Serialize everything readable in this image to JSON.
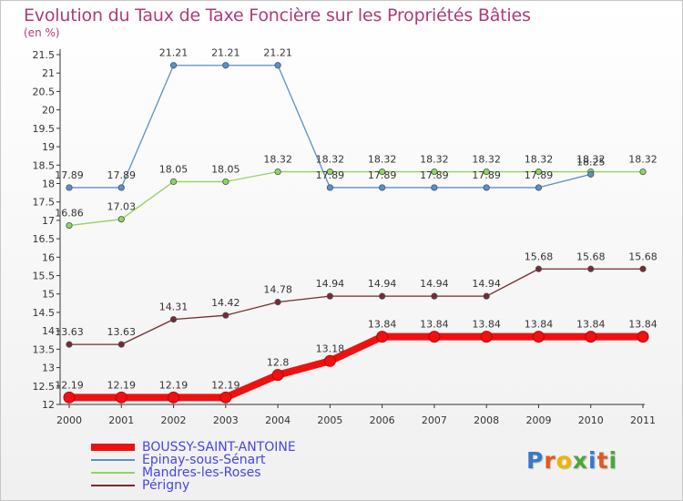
{
  "header": {
    "title": "Evolution du Taux de Taxe Foncière sur les Propriétés Bâties",
    "subtitle": "(en %)"
  },
  "chart_data": {
    "type": "line",
    "title": "Evolution du Taux de Taxe Foncière sur les Propriétés Bâties",
    "subtitle": "(en %)",
    "x": [
      "2000",
      "2001",
      "2002",
      "2003",
      "2004",
      "2005",
      "2006",
      "2007",
      "2008",
      "2009",
      "2010",
      "2011"
    ],
    "ylim": [
      12,
      21.5
    ],
    "yticks": [
      "12",
      "12.5",
      "13",
      "13.5",
      "14",
      "14.5",
      "15",
      "15.5",
      "16",
      "16.5",
      "17",
      "17.5",
      "18",
      "18.5",
      "19",
      "19.5",
      "20",
      "20.5",
      "21",
      "21.5"
    ],
    "grid": false,
    "legend_position": "bottom-left",
    "series": [
      {
        "name": "BOUSSY-SAINT-ANTOINE",
        "color": "#ee1111",
        "values": [
          12.19,
          12.19,
          12.19,
          12.19,
          12.8,
          13.18,
          13.84,
          13.84,
          13.84,
          13.84,
          13.84,
          13.84
        ],
        "labels": [
          "12.19",
          "12.19",
          "12.19",
          "12.19",
          "12.8",
          "13.18",
          "13.84",
          "13.84",
          "13.84",
          "13.84",
          "13.84",
          "13.84"
        ]
      },
      {
        "name": "Epinay-sous-Sénart",
        "color": "#5b8fc7",
        "values": [
          17.89,
          17.89,
          21.21,
          21.21,
          21.21,
          17.89,
          17.89,
          17.89,
          17.89,
          17.89,
          18.25,
          null
        ],
        "labels": [
          "17.89",
          "17.89",
          "21.21",
          "21.21",
          "21.21",
          "17.89",
          "17.89",
          "17.89",
          "17.89",
          "17.89",
          "18.25",
          null
        ]
      },
      {
        "name": "Mandres-les-Roses",
        "color": "#8fd65a",
        "values": [
          16.86,
          17.03,
          18.05,
          18.05,
          18.32,
          18.32,
          18.32,
          18.32,
          18.32,
          18.32,
          18.32,
          18.32
        ],
        "labels": [
          "16.86",
          "17.03",
          "18.05",
          "18.05",
          "18.32",
          "18.32",
          "18.32",
          "18.32",
          "18.32",
          "18.32",
          "18.32",
          "18.32"
        ]
      },
      {
        "name": "Périgny",
        "color": "#7a2a2a",
        "values": [
          13.63,
          13.63,
          14.31,
          14.42,
          14.78,
          14.94,
          14.94,
          14.94,
          14.94,
          15.68,
          15.68,
          15.68
        ],
        "labels": [
          "13.63",
          "13.63",
          "14.31",
          "14.42",
          "14.78",
          "14.94",
          "14.94",
          "14.94",
          "14.94",
          "15.68",
          "15.68",
          "15.68"
        ]
      }
    ]
  },
  "legend": {
    "items": [
      {
        "label": "BOUSSY-SAINT-ANTOINE",
        "color": "#ee1111",
        "thick": true
      },
      {
        "label": "Epinay-sous-Sénart",
        "color": "#5b8fc7",
        "thick": false
      },
      {
        "label": "Mandres-les-Roses",
        "color": "#8fd65a",
        "thick": false
      },
      {
        "label": "Périgny",
        "color": "#7a2a2a",
        "thick": false
      }
    ]
  },
  "logo": {
    "letters": [
      "P",
      "r",
      "o",
      "x",
      "i",
      "t",
      "i"
    ],
    "colors": [
      "#3a78c8",
      "#e05a1e",
      "#f0b400",
      "#4aa83a",
      "#3a78c8",
      "#e05a1e",
      "#4aa83a"
    ]
  }
}
